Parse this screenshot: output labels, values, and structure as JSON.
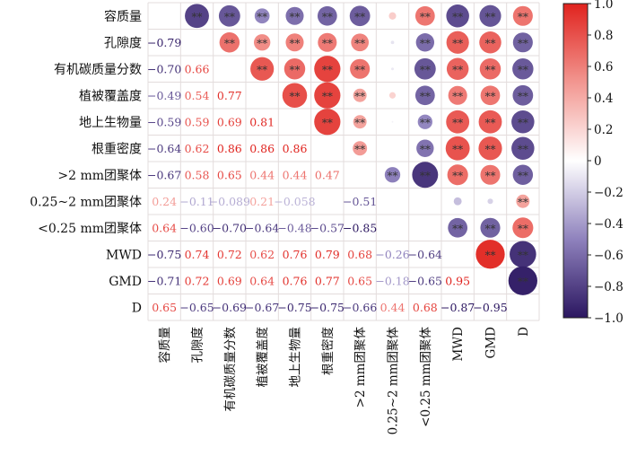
{
  "chart_data": {
    "type": "heatmap",
    "subtype": "correlation-matrix (lower: values, upper: circles)",
    "labels": [
      "容质量",
      "孔隙度",
      "有机碳质量分数",
      "植被覆盖度",
      "地上生物量",
      "根重密度",
      ">2 mm团聚体",
      "0.25~2 mm团聚体",
      "<0.25 mm团聚体",
      "MWD",
      "GMD",
      "D"
    ],
    "lower_triangle": [
      [],
      [
        -0.79
      ],
      [
        -0.7,
        0.66
      ],
      [
        -0.49,
        0.54,
        0.77
      ],
      [
        -0.59,
        0.59,
        0.69,
        0.81
      ],
      [
        -0.64,
        0.62,
        0.86,
        0.86,
        0.86
      ],
      [
        -0.67,
        0.58,
        0.65,
        0.44,
        0.44,
        0.47
      ],
      [
        0.24,
        -0.11,
        -0.089,
        0.21,
        -0.058,
        0.02,
        -0.51
      ],
      [
        0.64,
        -0.6,
        -0.7,
        -0.64,
        -0.48,
        -0.57,
        -0.85,
        0.01
      ],
      [
        -0.75,
        0.74,
        0.72,
        0.62,
        0.76,
        0.79,
        0.68,
        -0.26,
        -0.64
      ],
      [
        -0.71,
        0.72,
        0.69,
        0.64,
        0.76,
        0.77,
        0.65,
        -0.18,
        -0.65,
        0.95
      ],
      [
        0.65,
        -0.65,
        -0.69,
        -0.67,
        -0.75,
        -0.75,
        -0.66,
        0.44,
        0.68,
        -0.87,
        -0.95
      ]
    ],
    "significance_marker": "**",
    "significance_threshold_abs_r": 0.4,
    "colorbar": {
      "range": [
        -1.0,
        1.0
      ],
      "ticks": [
        "1.0",
        "0.8",
        "0.6",
        "0.4",
        "0.2",
        "0",
        "-0.2",
        "-0.4",
        "-0.6",
        "-0.8",
        "-1.0"
      ],
      "position": "right"
    },
    "colors": {
      "positive": "#e0231e",
      "negative": "#2b1660",
      "zero": "#ffffff",
      "grid": "#e3dcdc"
    }
  }
}
